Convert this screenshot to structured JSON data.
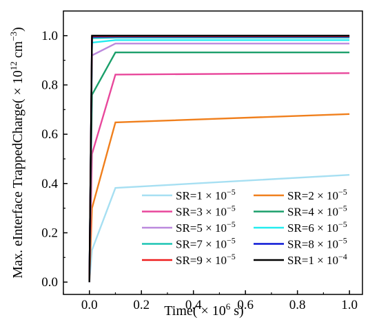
{
  "chart_data": {
    "type": "line",
    "xlabel_parts": {
      "pre": "Time( ",
      "times": "×",
      "exp_base": " 10",
      "exp": "6",
      "post": " s)"
    },
    "ylabel_parts": {
      "pre": "Max. eInterface TrappedCharge( ",
      "times": "×",
      "exp_base": " 10",
      "exp": "12",
      "unit": " cm",
      "unit_exp": "−3",
      "post": ")"
    },
    "xlim": [
      -0.1,
      1.05
    ],
    "ylim": [
      -0.05,
      1.1
    ],
    "xticks": [
      0.0,
      0.2,
      0.4,
      0.6,
      0.8,
      1.0
    ],
    "xtick_labels": [
      "0.0",
      "0.2",
      "0.4",
      "0.6",
      "0.8",
      "1.0"
    ],
    "yticks": [
      0.0,
      0.2,
      0.4,
      0.6,
      0.8,
      1.0
    ],
    "ytick_labels": [
      "0.0",
      "0.2",
      "0.4",
      "0.6",
      "0.8",
      "1.0"
    ],
    "grid": false,
    "legend_position": "bottom-right",
    "series": [
      {
        "name": "SR=1 × 10",
        "name_exp": "−5",
        "color": "#a6dff2",
        "x": [
          0,
          0.01,
          0.1,
          1.0
        ],
        "y": [
          0.0,
          0.13,
          0.382,
          0.435
        ]
      },
      {
        "name": "SR=2 × 10",
        "name_exp": "−5",
        "color": "#f07f1c",
        "x": [
          0,
          0.01,
          0.1,
          1.0
        ],
        "y": [
          0.0,
          0.3,
          0.648,
          0.682
        ]
      },
      {
        "name": "SR=3 × 10",
        "name_exp": "−5",
        "color": "#e8479b",
        "x": [
          0,
          0.01,
          0.1,
          1.0
        ],
        "y": [
          0.0,
          0.52,
          0.842,
          0.848
        ]
      },
      {
        "name": "SR=4 × 10",
        "name_exp": "−5",
        "color": "#1a9f6a",
        "x": [
          0,
          0.01,
          0.1,
          1.0
        ],
        "y": [
          0.0,
          0.76,
          0.932,
          0.932
        ]
      },
      {
        "name": "SR=5 × 10",
        "name_exp": "−5",
        "color": "#bb88dd",
        "x": [
          0,
          0.01,
          0.1,
          1.0
        ],
        "y": [
          0.0,
          0.92,
          0.968,
          0.968
        ]
      },
      {
        "name": "SR=6 × 10",
        "name_exp": "−5",
        "color": "#22ecef",
        "x": [
          0,
          0.01,
          0.1,
          1.0
        ],
        "y": [
          0.0,
          0.972,
          0.982,
          0.982
        ]
      },
      {
        "name": "SR=7 × 10",
        "name_exp": "−5",
        "color": "#1cc4b4",
        "x": [
          0,
          0.01,
          0.1,
          1.0
        ],
        "y": [
          0.0,
          0.99,
          0.992,
          0.992
        ]
      },
      {
        "name": "SR=8 × 10",
        "name_exp": "−5",
        "color": "#0a16d6",
        "x": [
          0,
          0.01,
          0.1,
          1.0
        ],
        "y": [
          0.0,
          0.995,
          0.996,
          0.996
        ]
      },
      {
        "name": "SR=9 × 10",
        "name_exp": "−5",
        "color": "#ee1c1c",
        "x": [
          0,
          0.01,
          0.1,
          1.0
        ],
        "y": [
          0.0,
          0.998,
          0.998,
          0.998
        ]
      },
      {
        "name": "SR=1 × 10",
        "name_exp": "−4",
        "color": "#000000",
        "x": [
          0,
          0.01,
          0.1,
          1.0
        ],
        "y": [
          0.0,
          1.0,
          1.0,
          1.0
        ]
      }
    ]
  }
}
